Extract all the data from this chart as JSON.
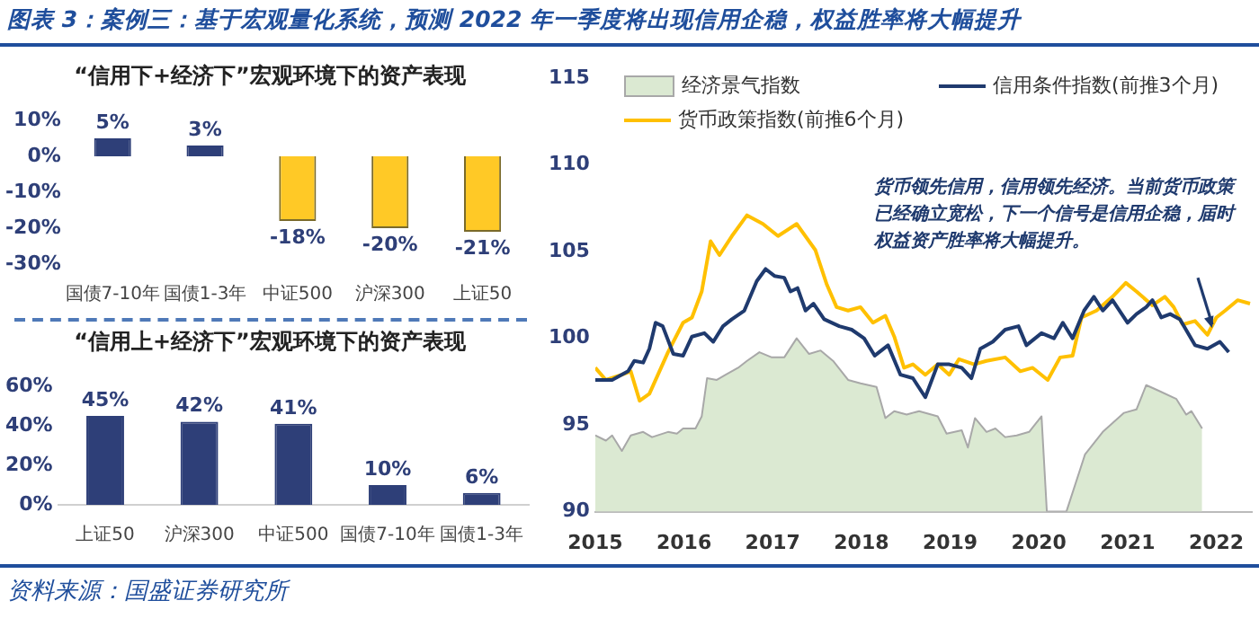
{
  "chart_data": [
    {
      "type": "bar",
      "title": "“信用下+经济下”宏观环境下的资产表现",
      "annotations": [
        "图表 3：案例三：基于宏观量化系统，预测 2022 年一季度将出现信用企稳，权益胜率将大幅提升"
      ],
      "categories": [
        "国债7-10年",
        "国债1-3年",
        "中证500",
        "沪深300",
        "上证50"
      ],
      "values": [
        5,
        3,
        -18,
        -20,
        -21
      ],
      "colors": [
        "#2e3f78",
        "#2e3f78",
        "#ffc926",
        "#ffc926",
        "#ffc926"
      ],
      "value_labels": [
        "5%",
        "3%",
        "-18%",
        "-20%",
        "-21%"
      ],
      "ylim": [
        -30,
        10
      ],
      "yticks": [
        {
          "value": -30,
          "label": "-30%"
        },
        {
          "value": -20,
          "label": "-20%"
        },
        {
          "value": -10,
          "label": "-10%"
        },
        {
          "value": 0,
          "label": "0%"
        },
        {
          "value": 10,
          "label": "10%"
        }
      ],
      "grid": false,
      "legend": false
    },
    {
      "type": "bar",
      "title": "“信用上+经济下”宏观环境下的资产表现",
      "categories": [
        "上证50",
        "沪深300",
        "中证500",
        "国债7-10年",
        "国债1-3年"
      ],
      "values": [
        45,
        42,
        41,
        10,
        6
      ],
      "colors": [
        "#2e3f78",
        "#2e3f78",
        "#2e3f78",
        "#2e3f78",
        "#2e3f78"
      ],
      "value_labels": [
        "45%",
        "42%",
        "41%",
        "10%",
        "6%"
      ],
      "ylim": [
        0,
        60
      ],
      "yticks": [
        {
          "value": 0,
          "label": "0%"
        },
        {
          "value": 20,
          "label": "20%"
        },
        {
          "value": 40,
          "label": "40%"
        },
        {
          "value": 60,
          "label": "60%"
        }
      ],
      "grid": false,
      "legend": false
    },
    {
      "type": "line",
      "xlim": [
        2015,
        2022.4
      ],
      "xticks": [
        2015,
        2016,
        2017,
        2018,
        2019,
        2020,
        2021,
        2022
      ],
      "ylim": [
        90,
        115
      ],
      "yticks": [
        90,
        95,
        100,
        105,
        110,
        115
      ],
      "grid": false,
      "legend": "top",
      "marker": "none",
      "line_style": "solid",
      "annotations": [
        "货币领先信用，信用领先经济。当前货币政策已经确立宽松，下一个信号是信用企稳，届时权益资产胜率将大幅提升。",
        "资料来源：国盛证券研究所"
      ],
      "series": [
        {
          "name": "经济景气指数",
          "type": "area",
          "color": "#dbe9d2",
          "x": [
            2015.0,
            2015.12,
            2015.19,
            2015.3,
            2015.4,
            2015.54,
            2015.64,
            2015.82,
            2015.92,
            2015.99,
            2016.13,
            2016.2,
            2016.26,
            2016.37,
            2016.47,
            2016.61,
            2016.71,
            2016.85,
            2016.99,
            2017.13,
            2017.27,
            2017.41,
            2017.54,
            2017.68,
            2017.85,
            2017.99,
            2018.17,
            2018.27,
            2018.37,
            2018.51,
            2018.65,
            2018.86,
            2018.96,
            2019.13,
            2019.2,
            2019.28,
            2019.41,
            2019.51,
            2019.62,
            2019.75,
            2019.89,
            2020.03,
            2020.09,
            2020.31,
            2020.52,
            2020.72,
            2020.96,
            2021.1,
            2021.21,
            2021.34,
            2021.55,
            2021.66,
            2021.72,
            2021.84
          ],
          "values": [
            94.4,
            94.1,
            94.4,
            93.5,
            94.4,
            94.6,
            94.3,
            94.6,
            94.5,
            94.8,
            94.8,
            95.5,
            97.7,
            97.6,
            97.9,
            98.3,
            98.7,
            99.2,
            98.9,
            98.9,
            100.0,
            99.1,
            99.3,
            98.7,
            97.6,
            97.4,
            97.2,
            95.4,
            95.8,
            95.6,
            95.8,
            95.5,
            94.5,
            94.7,
            93.7,
            95.4,
            94.6,
            94.8,
            94.3,
            94.4,
            94.6,
            95.5,
            90,
            90,
            93.3,
            94.6,
            95.7,
            95.9,
            97.3,
            97.0,
            96.5,
            95.6,
            95.8,
            94.8
          ]
        },
        {
          "name": "信用条件指数(前推3个月)",
          "type": "line",
          "color": "#1f3a6e",
          "x": [
            2015.0,
            2015.19,
            2015.37,
            2015.44,
            2015.54,
            2015.61,
            2015.68,
            2015.76,
            2015.88,
            2015.99,
            2016.09,
            2016.23,
            2016.33,
            2016.44,
            2016.54,
            2016.68,
            2016.82,
            2016.92,
            2017.02,
            2017.13,
            2017.2,
            2017.28,
            2017.37,
            2017.46,
            2017.58,
            2017.75,
            2017.89,
            2018.03,
            2018.15,
            2018.3,
            2018.44,
            2018.58,
            2018.72,
            2018.86,
            2018.99,
            2019.13,
            2019.24,
            2019.34,
            2019.48,
            2019.62,
            2019.77,
            2019.86,
            2020.03,
            2020.17,
            2020.27,
            2020.38,
            2020.51,
            2020.62,
            2020.72,
            2020.83,
            2021.0,
            2021.1,
            2021.21,
            2021.28,
            2021.38,
            2021.48,
            2021.59,
            2021.76,
            2021.9,
            2022.04,
            2022.14
          ],
          "values": [
            97.6,
            97.6,
            98.1,
            98.7,
            98.6,
            99.4,
            100.9,
            100.7,
            99.1,
            99.0,
            100.1,
            100.3,
            99.8,
            100.7,
            101.1,
            101.6,
            103.3,
            104.0,
            103.6,
            103.5,
            102.7,
            102.9,
            101.6,
            102.0,
            101.1,
            100.7,
            100.5,
            100.0,
            99.0,
            99.6,
            97.9,
            97.7,
            96.6,
            98.5,
            98.5,
            98.3,
            97.7,
            99.4,
            99.8,
            100.5,
            100.7,
            99.6,
            100.3,
            100.0,
            100.9,
            100.0,
            101.6,
            102.4,
            101.6,
            102.2,
            100.9,
            101.4,
            101.8,
            102.2,
            101.2,
            101.4,
            101.1,
            99.6,
            99.4,
            99.8,
            99.2
          ]
        },
        {
          "name": "货币政策指数(前推6个月)",
          "type": "line",
          "color": "#ffc000",
          "x": [
            2015.0,
            2015.12,
            2015.3,
            2015.4,
            2015.5,
            2015.61,
            2015.82,
            2015.99,
            2016.09,
            2016.2,
            2016.3,
            2016.4,
            2016.54,
            2016.71,
            2016.89,
            2017.06,
            2017.27,
            2017.48,
            2017.61,
            2017.72,
            2017.85,
            2017.99,
            2018.13,
            2018.27,
            2018.37,
            2018.48,
            2018.58,
            2018.72,
            2018.86,
            2018.99,
            2019.1,
            2019.27,
            2019.41,
            2019.62,
            2019.79,
            2019.93,
            2020.1,
            2020.24,
            2020.38,
            2020.48,
            2020.65,
            2020.83,
            2020.98,
            2021.1,
            2021.28,
            2021.42,
            2021.52,
            2021.62,
            2021.76,
            2021.9,
            2022.0,
            2022.1,
            2022.24,
            2022.38
          ],
          "values": [
            98.3,
            97.6,
            97.9,
            98.1,
            96.4,
            96.8,
            99.2,
            100.9,
            101.2,
            102.7,
            105.6,
            104.8,
            105.9,
            107.1,
            106.6,
            105.9,
            106.6,
            105.1,
            103.1,
            101.8,
            101.6,
            101.8,
            100.9,
            101.3,
            100.1,
            98.3,
            98.5,
            97.9,
            98.5,
            97.9,
            98.8,
            98.5,
            98.7,
            98.9,
            98.1,
            98.3,
            97.6,
            98.9,
            99.0,
            101.2,
            101.6,
            102.4,
            103.2,
            102.7,
            101.9,
            102.4,
            101.8,
            100.8,
            101.0,
            100.2,
            101.2,
            101.6,
            102.2,
            102.0
          ]
        }
      ]
    }
  ]
}
